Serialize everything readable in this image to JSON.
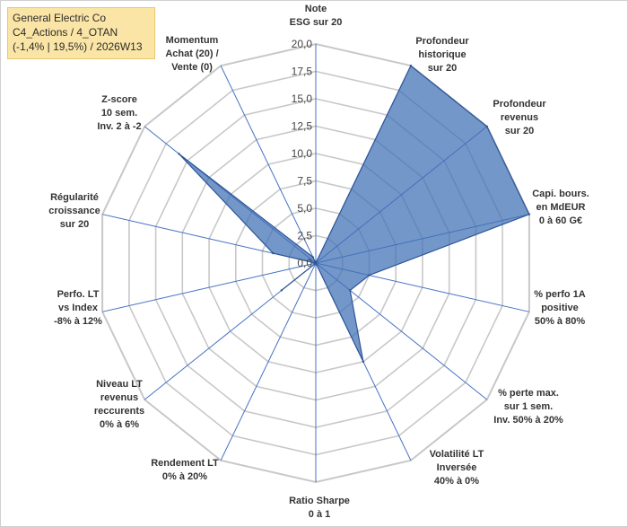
{
  "header": {
    "line1": "General Electric Co",
    "line2": "C4_Actions / 4_OTAN",
    "line3": "(-1,4% | 19,5%) / 2026W13"
  },
  "colors": {
    "grid": "#c8c8c8",
    "spoke": "#4472c4",
    "fill": "#3f6fb5",
    "stroke": "#2e5597",
    "title_bg": "#fbe5a6"
  },
  "chart_data": {
    "type": "radar",
    "title": "General Electric Co",
    "rmin": 0,
    "rmax": 20,
    "tick_step": 2.5,
    "tick_labels": [
      "0,0",
      "2,5",
      "5,0",
      "7,5",
      "10,0",
      "12,5",
      "15,0",
      "17,5",
      "20,0"
    ],
    "categories": [
      [
        "Note",
        "ESG sur 20"
      ],
      [
        "Profondeur",
        "historique",
        "sur 20"
      ],
      [
        "Profondeur",
        "revenus",
        "sur 20"
      ],
      [
        "Capi. bours.",
        "en MdEUR",
        "0 à 60 G€"
      ],
      [
        "% perfo 1A",
        "positive",
        "50% à 80%"
      ],
      [
        "% perte max.",
        "sur 1 sem.",
        "Inv. 50% à 20%"
      ],
      [
        "Volatilité LT",
        "Inversée",
        "40% à 0%"
      ],
      [
        "Ratio Sharpe",
        "0 à 1"
      ],
      [
        "Rendement LT",
        "0% à 20%"
      ],
      [
        "Niveau LT",
        "revenus",
        "reccurents",
        "0% à 6%"
      ],
      [
        "Perfo. LT",
        "vs Index",
        "-8% à 12%"
      ],
      [
        "Régularité",
        "croissance",
        "sur 20"
      ],
      [
        "Z-score",
        "10 sem.",
        "Inv. 2 à -2"
      ],
      [
        "Momentum",
        "Achat (20) /",
        "Vente (0)"
      ]
    ],
    "series": [
      {
        "name": "General Electric Co",
        "values": [
          0,
          20,
          20,
          20,
          5,
          4,
          10,
          0,
          0,
          4,
          0,
          4,
          16,
          0.6
        ]
      }
    ]
  }
}
